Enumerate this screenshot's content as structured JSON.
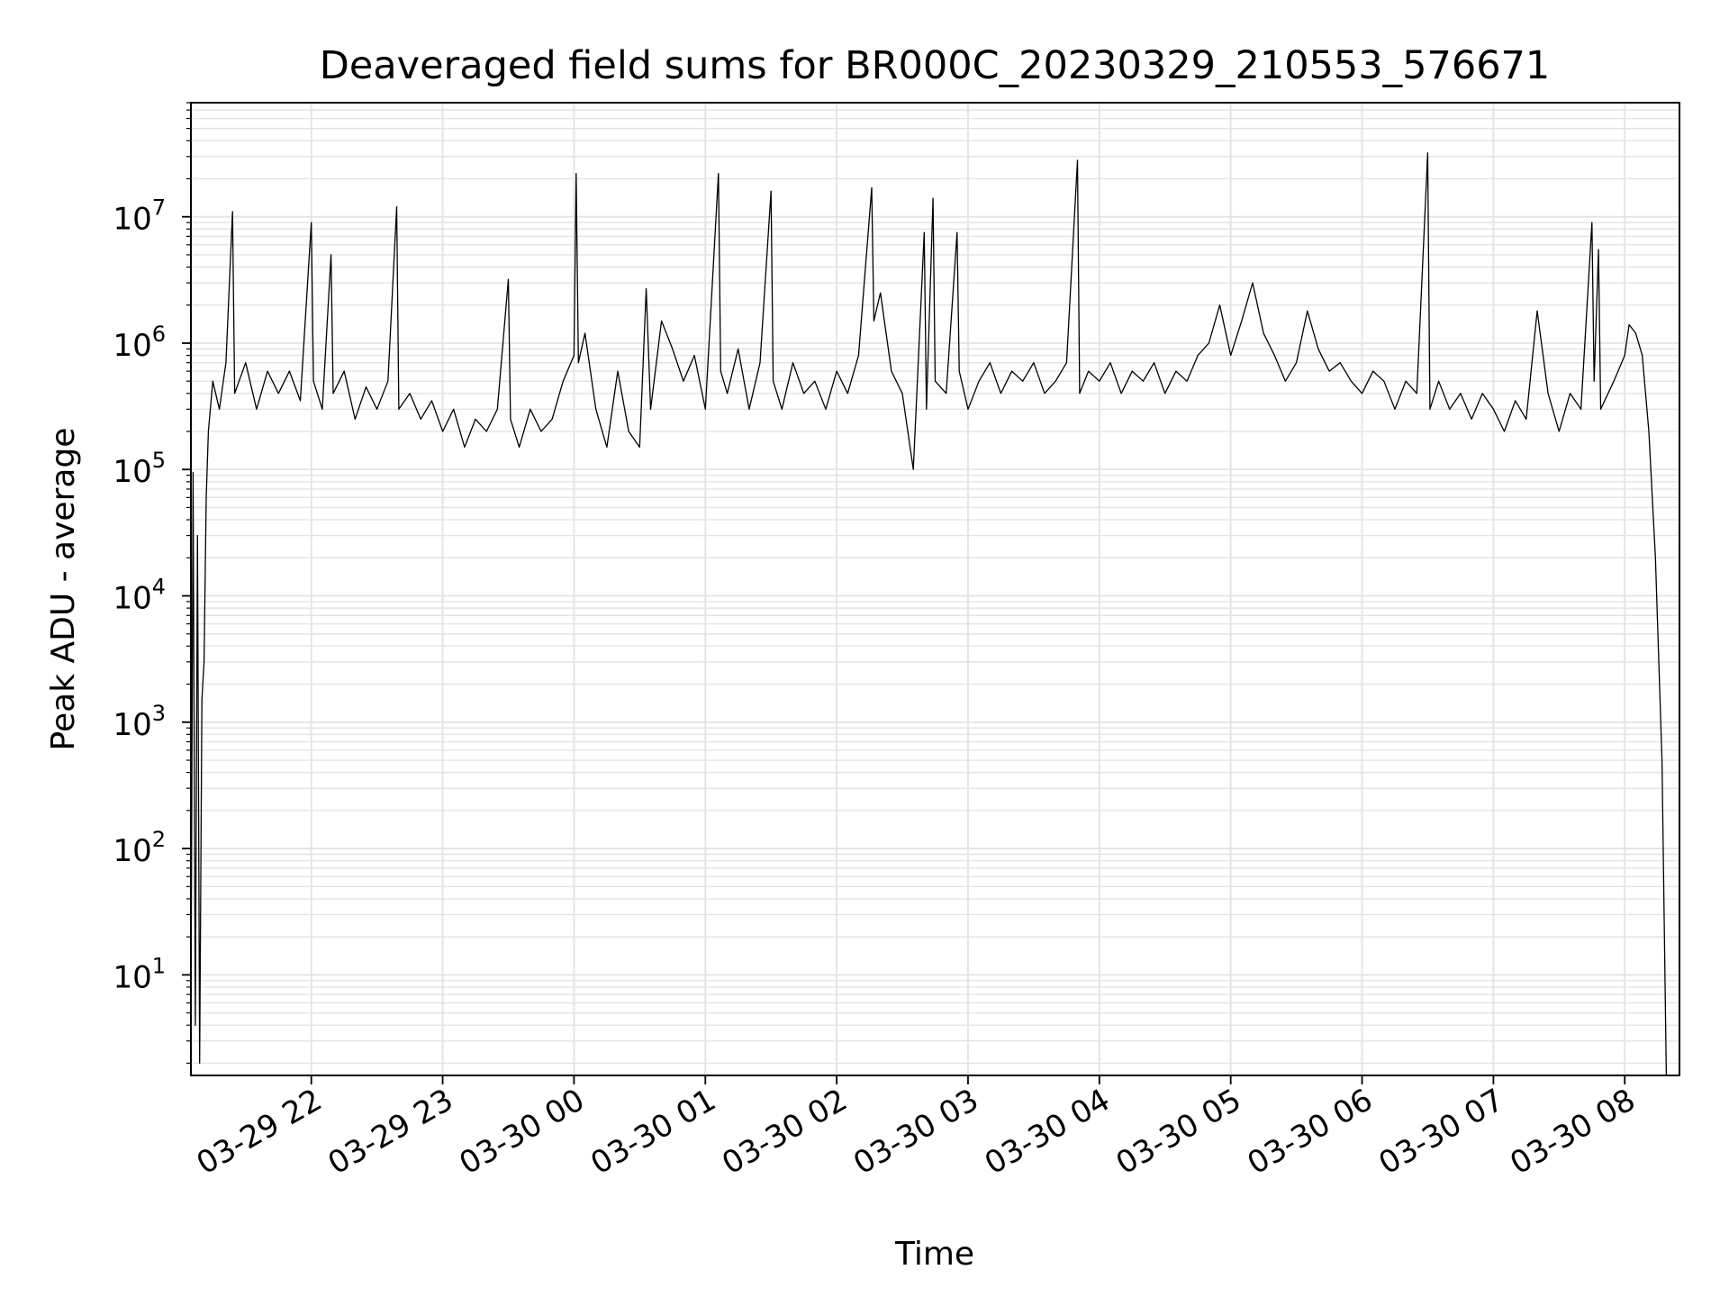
{
  "chart_data": {
    "type": "line",
    "title": "Deaveraged field sums for BR000C_20230329_210553_576671",
    "xlabel": "Time",
    "ylabel": "Peak ADU - average",
    "yscale": "log",
    "ylim": [
      1.6,
      80000000
    ],
    "xlim": [
      "03-29 21:05",
      "03-30 08:25"
    ],
    "grid": true,
    "x_tick_labels": [
      "03-29 22",
      "03-29 23",
      "03-30 00",
      "03-30 01",
      "03-30 02",
      "03-30 03",
      "03-30 04",
      "03-30 05",
      "03-30 06",
      "03-30 07",
      "03-30 08"
    ],
    "y_tick_labels": [
      {
        "base": "10",
        "exp": "1",
        "value": 10
      },
      {
        "base": "10",
        "exp": "2",
        "value": 100
      },
      {
        "base": "10",
        "exp": "3",
        "value": 1000
      },
      {
        "base": "10",
        "exp": "4",
        "value": 10000
      },
      {
        "base": "10",
        "exp": "5",
        "value": 100000
      },
      {
        "base": "10",
        "exp": "6",
        "value": 1000000
      },
      {
        "base": "10",
        "exp": "7",
        "value": 10000000
      }
    ],
    "series": [
      {
        "color": "#000000",
        "points": [
          [
            "03-29 21:05",
            4
          ],
          [
            "03-29 21:06",
            95000
          ],
          [
            "03-29 21:07",
            4
          ],
          [
            "03-29 21:08",
            30000
          ],
          [
            "03-29 21:09",
            2
          ],
          [
            "03-29 21:10",
            1500
          ],
          [
            "03-29 21:11",
            3000
          ],
          [
            "03-29 21:12",
            60000
          ],
          [
            "03-29 21:13",
            200000
          ],
          [
            "03-29 21:15",
            500000
          ],
          [
            "03-29 21:18",
            300000
          ],
          [
            "03-29 21:21",
            700000
          ],
          [
            "03-29 21:24",
            11000000
          ],
          [
            "03-29 21:25",
            400000
          ],
          [
            "03-29 21:30",
            700000
          ],
          [
            "03-29 21:35",
            300000
          ],
          [
            "03-29 21:40",
            600000
          ],
          [
            "03-29 21:45",
            400000
          ],
          [
            "03-29 21:50",
            600000
          ],
          [
            "03-29 21:55",
            350000
          ],
          [
            "03-29 22:00",
            9000000
          ],
          [
            "03-29 22:01",
            500000
          ],
          [
            "03-29 22:05",
            300000
          ],
          [
            "03-29 22:09",
            5000000
          ],
          [
            "03-29 22:10",
            400000
          ],
          [
            "03-29 22:15",
            600000
          ],
          [
            "03-29 22:20",
            250000
          ],
          [
            "03-29 22:25",
            450000
          ],
          [
            "03-29 22:30",
            300000
          ],
          [
            "03-29 22:35",
            500000
          ],
          [
            "03-29 22:39",
            12000000
          ],
          [
            "03-29 22:40",
            300000
          ],
          [
            "03-29 22:45",
            400000
          ],
          [
            "03-29 22:50",
            250000
          ],
          [
            "03-29 22:55",
            350000
          ],
          [
            "03-29 23:00",
            200000
          ],
          [
            "03-29 23:05",
            300000
          ],
          [
            "03-29 23:10",
            150000
          ],
          [
            "03-29 23:15",
            250000
          ],
          [
            "03-29 23:20",
            200000
          ],
          [
            "03-29 23:25",
            300000
          ],
          [
            "03-29 23:30",
            3200000
          ],
          [
            "03-29 23:31",
            250000
          ],
          [
            "03-29 23:35",
            150000
          ],
          [
            "03-29 23:40",
            300000
          ],
          [
            "03-29 23:45",
            200000
          ],
          [
            "03-29 23:50",
            250000
          ],
          [
            "03-29 23:55",
            500000
          ],
          [
            "03-30 00:00",
            800000
          ],
          [
            "03-30 00:01",
            22000000
          ],
          [
            "03-30 00:02",
            700000
          ],
          [
            "03-30 00:05",
            1200000
          ],
          [
            "03-30 00:10",
            300000
          ],
          [
            "03-30 00:15",
            150000
          ],
          [
            "03-30 00:20",
            600000
          ],
          [
            "03-30 00:25",
            200000
          ],
          [
            "03-30 00:30",
            150000
          ],
          [
            "03-30 00:33",
            2700000
          ],
          [
            "03-30 00:35",
            300000
          ],
          [
            "03-30 00:40",
            1500000
          ],
          [
            "03-30 00:45",
            900000
          ],
          [
            "03-30 00:50",
            500000
          ],
          [
            "03-30 00:55",
            800000
          ],
          [
            "03-30 01:00",
            300000
          ],
          [
            "03-30 01:06",
            22000000
          ],
          [
            "03-30 01:07",
            600000
          ],
          [
            "03-30 01:10",
            400000
          ],
          [
            "03-30 01:15",
            900000
          ],
          [
            "03-30 01:20",
            300000
          ],
          [
            "03-30 01:25",
            700000
          ],
          [
            "03-30 01:30",
            16000000
          ],
          [
            "03-30 01:31",
            500000
          ],
          [
            "03-30 01:35",
            300000
          ],
          [
            "03-30 01:40",
            700000
          ],
          [
            "03-30 01:45",
            400000
          ],
          [
            "03-30 01:50",
            500000
          ],
          [
            "03-30 01:55",
            300000
          ],
          [
            "03-30 02:00",
            600000
          ],
          [
            "03-30 02:05",
            400000
          ],
          [
            "03-30 02:10",
            800000
          ],
          [
            "03-30 02:16",
            17000000
          ],
          [
            "03-30 02:17",
            1500000
          ],
          [
            "03-30 02:20",
            2500000
          ],
          [
            "03-30 02:25",
            600000
          ],
          [
            "03-30 02:30",
            400000
          ],
          [
            "03-30 02:35",
            100000
          ],
          [
            "03-30 02:40",
            7500000
          ],
          [
            "03-30 02:41",
            300000
          ],
          [
            "03-30 02:44",
            14000000
          ],
          [
            "03-30 02:45",
            500000
          ],
          [
            "03-30 02:50",
            400000
          ],
          [
            "03-30 02:55",
            7500000
          ],
          [
            "03-30 02:56",
            600000
          ],
          [
            "03-30 03:00",
            300000
          ],
          [
            "03-30 03:05",
            500000
          ],
          [
            "03-30 03:10",
            700000
          ],
          [
            "03-30 03:15",
            400000
          ],
          [
            "03-30 03:20",
            600000
          ],
          [
            "03-30 03:25",
            500000
          ],
          [
            "03-30 03:30",
            700000
          ],
          [
            "03-30 03:35",
            400000
          ],
          [
            "03-30 03:40",
            500000
          ],
          [
            "03-30 03:45",
            700000
          ],
          [
            "03-30 03:50",
            28000000
          ],
          [
            "03-30 03:51",
            400000
          ],
          [
            "03-30 03:55",
            600000
          ],
          [
            "03-30 04:00",
            500000
          ],
          [
            "03-30 04:05",
            700000
          ],
          [
            "03-30 04:10",
            400000
          ],
          [
            "03-30 04:15",
            600000
          ],
          [
            "03-30 04:20",
            500000
          ],
          [
            "03-30 04:25",
            700000
          ],
          [
            "03-30 04:30",
            400000
          ],
          [
            "03-30 04:35",
            600000
          ],
          [
            "03-30 04:40",
            500000
          ],
          [
            "03-30 04:45",
            800000
          ],
          [
            "03-30 04:50",
            1000000
          ],
          [
            "03-30 04:55",
            2000000
          ],
          [
            "03-30 05:00",
            800000
          ],
          [
            "03-30 05:05",
            1500000
          ],
          [
            "03-30 05:10",
            3000000
          ],
          [
            "03-30 05:15",
            1200000
          ],
          [
            "03-30 05:20",
            800000
          ],
          [
            "03-30 05:25",
            500000
          ],
          [
            "03-30 05:30",
            700000
          ],
          [
            "03-30 05:35",
            1800000
          ],
          [
            "03-30 05:40",
            900000
          ],
          [
            "03-30 05:45",
            600000
          ],
          [
            "03-30 05:50",
            700000
          ],
          [
            "03-30 05:55",
            500000
          ],
          [
            "03-30 06:00",
            400000
          ],
          [
            "03-30 06:05",
            600000
          ],
          [
            "03-30 06:10",
            500000
          ],
          [
            "03-30 06:15",
            300000
          ],
          [
            "03-30 06:20",
            500000
          ],
          [
            "03-30 06:25",
            400000
          ],
          [
            "03-30 06:30",
            32000000
          ],
          [
            "03-30 06:31",
            300000
          ],
          [
            "03-30 06:35",
            500000
          ],
          [
            "03-30 06:40",
            300000
          ],
          [
            "03-30 06:45",
            400000
          ],
          [
            "03-30 06:50",
            250000
          ],
          [
            "03-30 06:55",
            400000
          ],
          [
            "03-30 07:00",
            300000
          ],
          [
            "03-30 07:05",
            200000
          ],
          [
            "03-30 07:10",
            350000
          ],
          [
            "03-30 07:15",
            250000
          ],
          [
            "03-30 07:20",
            1800000
          ],
          [
            "03-30 07:25",
            400000
          ],
          [
            "03-30 07:30",
            200000
          ],
          [
            "03-30 07:35",
            400000
          ],
          [
            "03-30 07:40",
            300000
          ],
          [
            "03-30 07:45",
            9000000
          ],
          [
            "03-30 07:46",
            500000
          ],
          [
            "03-30 07:48",
            5500000
          ],
          [
            "03-30 07:49",
            300000
          ],
          [
            "03-30 07:55",
            500000
          ],
          [
            "03-30 08:00",
            800000
          ],
          [
            "03-30 08:02",
            1400000
          ],
          [
            "03-30 08:05",
            1200000
          ],
          [
            "03-30 08:08",
            800000
          ],
          [
            "03-30 08:11",
            200000
          ],
          [
            "03-30 08:14",
            20000
          ],
          [
            "03-30 08:17",
            500
          ],
          [
            "03-30 08:19",
            1.6
          ]
        ]
      }
    ]
  }
}
